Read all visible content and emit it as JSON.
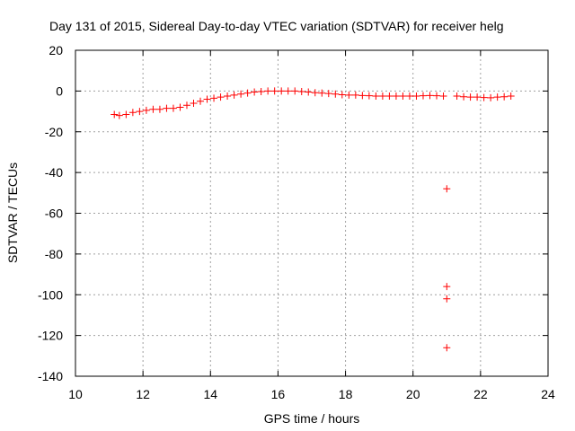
{
  "chart_data": {
    "type": "scatter",
    "title": "Day 131 of 2015, Sidereal Day-to-day VTEC variation (SDTVAR) for receiver helg",
    "xlabel": "GPS time / hours",
    "ylabel": "SDTVAR / TECUs",
    "xlim": [
      10,
      24
    ],
    "ylim": [
      -140,
      20
    ],
    "xticks": [
      10,
      12,
      14,
      16,
      18,
      20,
      22,
      24
    ],
    "yticks": [
      20,
      0,
      -20,
      -40,
      -60,
      -80,
      -100,
      -120,
      -140
    ],
    "grid": true,
    "marker": "plus",
    "color": "#ff0000",
    "series": [
      {
        "name": "SDTVAR",
        "x": [
          11.15,
          11.3,
          11.5,
          11.7,
          11.9,
          12.1,
          12.3,
          12.5,
          12.7,
          12.9,
          13.1,
          13.3,
          13.5,
          13.7,
          13.9,
          14.1,
          14.3,
          14.5,
          14.7,
          14.9,
          15.1,
          15.3,
          15.5,
          15.7,
          15.9,
          16.1,
          16.3,
          16.5,
          16.7,
          16.9,
          17.1,
          17.3,
          17.5,
          17.7,
          17.9,
          18.1,
          18.3,
          18.5,
          18.7,
          18.9,
          19.1,
          19.3,
          19.5,
          19.7,
          19.9,
          20.1,
          20.3,
          20.5,
          20.7,
          20.9,
          21.3,
          21.5,
          21.7,
          21.9,
          22.1,
          22.3,
          22.5,
          22.7,
          22.9,
          21.0,
          21.0,
          21.0,
          21.0
        ],
        "y": [
          -11.5,
          -12,
          -11.5,
          -10.5,
          -10,
          -9.5,
          -9,
          -9,
          -8.5,
          -8.5,
          -8,
          -7,
          -6,
          -5,
          -4,
          -3.5,
          -3,
          -2.5,
          -2,
          -1.5,
          -1,
          -0.5,
          -0.3,
          0,
          0,
          0,
          0,
          0,
          -0.3,
          -0.5,
          -0.8,
          -1,
          -1.2,
          -1.5,
          -1.8,
          -2,
          -2,
          -2.2,
          -2.3,
          -2.5,
          -2.5,
          -2.5,
          -2.5,
          -2.5,
          -2.5,
          -2.5,
          -2.3,
          -2.2,
          -2.3,
          -2.5,
          -2.5,
          -2.8,
          -3,
          -3,
          -3.2,
          -3.3,
          -3,
          -2.8,
          -2.5,
          -48,
          -96,
          -102,
          -126
        ]
      }
    ]
  }
}
